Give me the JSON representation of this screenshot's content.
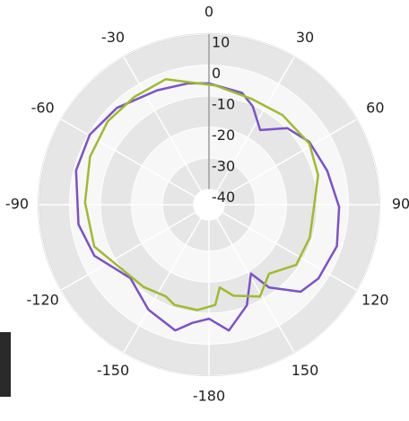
{
  "chart_data": {
    "type": "polar",
    "rlim": [
      -45,
      10
    ],
    "rticks": [
      -40,
      -30,
      -20,
      -10,
      0,
      10
    ],
    "thetaticks": [
      0,
      30,
      60,
      90,
      120,
      150,
      -180,
      -150,
      -120,
      -90,
      -60,
      -30
    ],
    "series": [
      {
        "color": "#7b52c9",
        "theta": [
          0,
          16.5,
          24,
          34.5,
          45.7,
          58,
          74,
          91,
          108,
          124,
          133.5,
          144,
          148.6,
          159.4,
          171,
          180,
          -172,
          -165,
          -150,
          -133,
          -114,
          -98.6,
          -75.6,
          -59.6,
          -43.6,
          -24.4,
          -9.7
        ],
        "values": [
          -5.9,
          -7.4,
          -10.3,
          -15.8,
          -9.7,
          -6.8,
          -5.3,
          -3,
          -1.6,
          -2.4,
          -4.2,
          -12,
          -19,
          -10.3,
          -3.9,
          -8.2,
          -6.5,
          -3,
          -5.9,
          -10.3,
          -4.5,
          -2.4,
          -0.7,
          -0.4,
          -1.9,
          -4.5,
          -5.3
        ]
      },
      {
        "color": "#9fbb2e",
        "theta": [
          3,
          21.7,
          39.4,
          58.7,
          74.9,
          91,
          108,
          124.6,
          139,
          151,
          165,
          172.6,
          176.4,
          -173.7,
          -161,
          -154.8,
          -141.6,
          -123,
          -110,
          -89,
          -68,
          -50.5,
          -34.7,
          -19
        ],
        "values": [
          -6.5,
          -8.2,
          -7.6,
          -7.1,
          -8.5,
          -11.1,
          -10.8,
          -10.8,
          -15.5,
          -11.1,
          -14.6,
          -18.1,
          -12.6,
          -10.8,
          -10.8,
          -12.3,
          -11.1,
          -9.4,
          -5.6,
          -5,
          -3.6,
          -2.7,
          -2.7,
          -2.2
        ]
      }
    ]
  }
}
